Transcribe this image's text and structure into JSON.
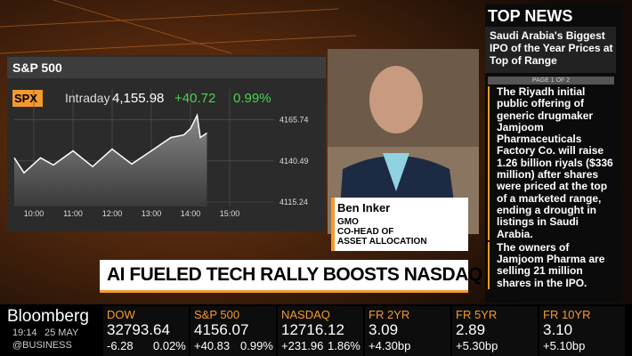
{
  "chart_data": {
    "type": "line",
    "title": "S&P 500",
    "symbol": "SPX",
    "period": "Intraday",
    "last": "4,155.98",
    "change": "+40.72",
    "change_pct": "0.99%",
    "x": [
      9.5,
      9.75,
      10.17,
      10.5,
      11.0,
      11.5,
      12.0,
      12.5,
      13.0,
      13.5,
      13.83,
      14.0,
      14.17,
      14.25,
      14.42
    ],
    "values": [
      4142.4,
      4133.2,
      4142.4,
      4138.0,
      4146.7,
      4137.0,
      4147.8,
      4138.6,
      4146.7,
      4154.9,
      4156.5,
      4160.3,
      4168.5,
      4154.9,
      4157.6
    ],
    "color": "#ffffff",
    "xlim": [
      9.5,
      16.0
    ],
    "ylim": [
      4112.5,
      4184.7
    ],
    "xticks": [
      {
        "value": 10,
        "label": "10:00"
      },
      {
        "value": 11,
        "label": "11:00"
      },
      {
        "value": 12,
        "label": "12:00"
      },
      {
        "value": 13,
        "label": "13:00"
      },
      {
        "value": 14,
        "label": "14:00"
      },
      {
        "value": 15,
        "label": "15:00"
      }
    ],
    "yticks": [
      4115.24,
      4140.49,
      4165.74
    ],
    "grid": true
  },
  "guest": {
    "name": "Ben Inker",
    "company": "GMO",
    "role_1": "CO-HEAD OF",
    "role_2": "ASSET ALLOCATION"
  },
  "headline": "AI FUELED TECH RALLY BOOSTS NASDAQ",
  "top_news": {
    "title": "TOP NEWS",
    "headline": "Saudi Arabia's Biggest IPO of the Year Prices at Top of Range",
    "page": "PAGE 1 OF 2",
    "bullets": [
      "The Riyadh initial public offering of generic drugmaker Jamjoom Pharmaceuticals Factory Co. will raise 1.26 billion riyals ($336 million) after shares were priced at the top of a marketed range, ending a drought in listings in Saudi Arabia.",
      "The owners of Jamjoom Pharma are selling 21 million shares in the IPO."
    ]
  },
  "brand": {
    "name": "Bloomberg",
    "time": "19:14",
    "date": "25 MAY",
    "handle": "@BUSINESS"
  },
  "ticker": [
    {
      "label": "DOW",
      "value": "32793.64",
      "change": "-6.28",
      "pct": "0.02%"
    },
    {
      "label": "S&P 500",
      "value": "4156.07",
      "change": "+40.83",
      "pct": "0.99%"
    },
    {
      "label": "NASDAQ",
      "value": "12716.12",
      "change": "+231.96",
      "pct": "1.86%"
    },
    {
      "label": "FR 2YR",
      "value": "3.09",
      "change": "+4.30bp"
    },
    {
      "label": "FR 5YR",
      "value": "2.89",
      "change": "+5.30bp"
    },
    {
      "label": "FR 10YR",
      "value": "3.10",
      "change": "+5.10bp"
    }
  ]
}
